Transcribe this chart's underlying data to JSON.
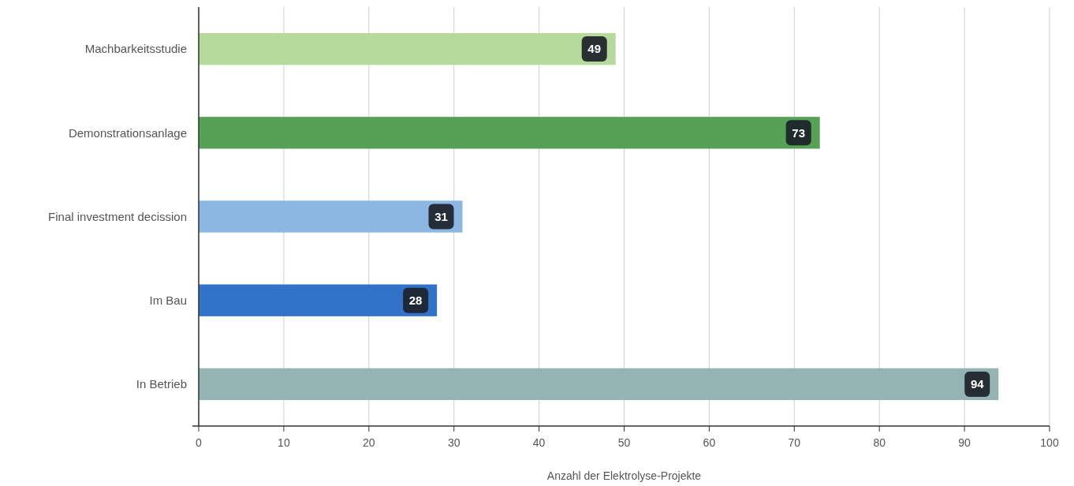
{
  "chart_data": {
    "type": "bar",
    "orientation": "horizontal",
    "xlabel": "Anzahl der Elektrolyse-Projekte",
    "categories": [
      "Machbarkeitsstudie",
      "Demonstrationsanlage",
      "Final investment decission",
      "Im Bau",
      "In Betrieb"
    ],
    "values": [
      49,
      73,
      31,
      28,
      94
    ],
    "colors": [
      "#b6d99c",
      "#55a155",
      "#8db7e3",
      "#3173c8",
      "#93b4b1"
    ],
    "xlim": [
      0,
      100
    ],
    "xticks": [
      0,
      10,
      20,
      30,
      40,
      50,
      60,
      70,
      80,
      90,
      100
    ],
    "grid": "x",
    "data_labels": true
  }
}
